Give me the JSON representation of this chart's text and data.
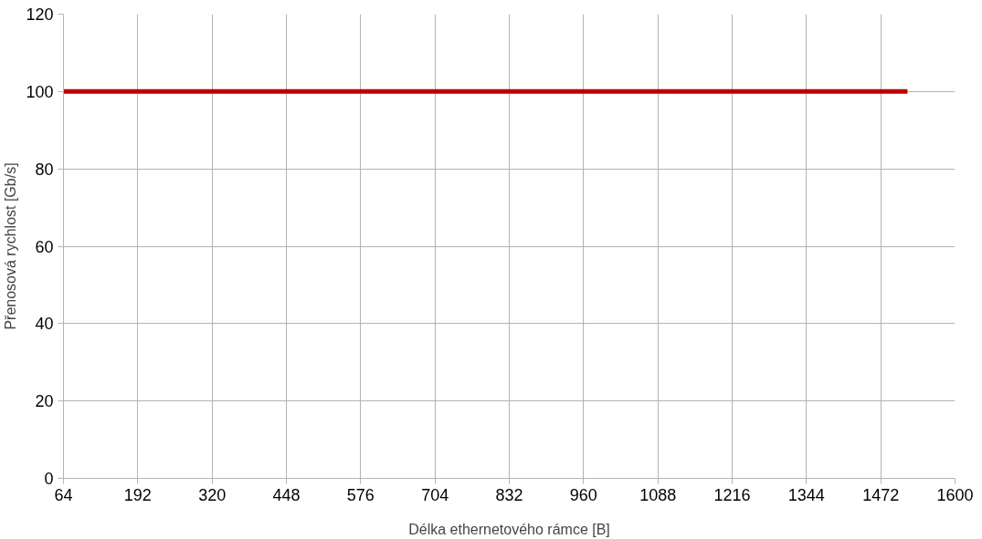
{
  "chart_data": {
    "type": "line",
    "xlabel": "Délka ethernetového rámce [B]",
    "ylabel": "Přenosová rychlost [Gb/s]",
    "x": [
      64,
      1518
    ],
    "series": [
      {
        "color": "#c00000",
        "values": [
          100,
          100
        ]
      }
    ],
    "xlim": [
      64,
      1600
    ],
    "xticks": [
      64,
      192,
      320,
      448,
      576,
      704,
      832,
      960,
      1088,
      1216,
      1344,
      1472,
      1600
    ],
    "ylim": [
      0,
      120
    ],
    "yticks": [
      0,
      20,
      40,
      60,
      80,
      100,
      120
    ],
    "grid": true,
    "marker": "none",
    "line_style": "solid"
  }
}
